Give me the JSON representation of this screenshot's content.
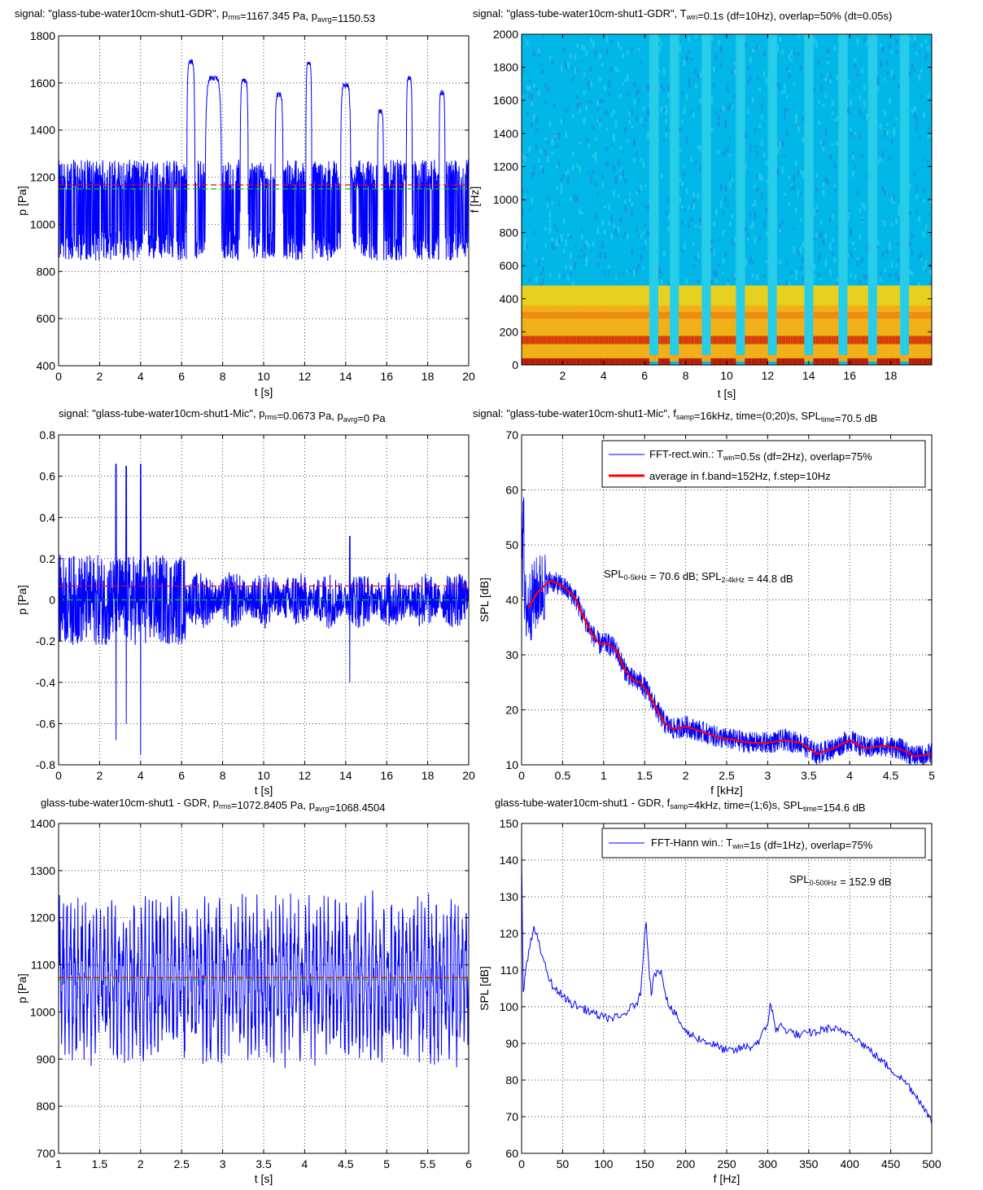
{
  "colors": {
    "signal": "#0000ff",
    "rms_line": "#ff0000",
    "avg_line": "#00cc00",
    "grid": "#000000",
    "spectrogram_bg": "#00b7e8"
  },
  "chart_data": [
    {
      "id": "p1",
      "type": "line",
      "title": {
        "pre": "signal: \"glass-tube-water10cm-shut1-GDR\",  p",
        "sub1": "rms",
        "mid": "=1167.345 Pa,  p",
        "sub2": "avrg",
        "post": "=1150.53"
      },
      "xlabel": "t [s]",
      "ylabel": "p [Pa]",
      "xlim": [
        0,
        20
      ],
      "ylim": [
        400,
        1800
      ],
      "xticks": [
        0,
        2,
        4,
        6,
        8,
        10,
        12,
        14,
        16,
        18,
        20
      ],
      "yticks": [
        400,
        600,
        800,
        1000,
        1200,
        1400,
        1600,
        1800
      ],
      "grid": true,
      "envelope": {
        "baseline_low": 820,
        "baseline_high": 1250,
        "baseline_mid": 1060,
        "pulses": [
          [
            6.3,
            6.6,
            1700
          ],
          [
            7.2,
            7.9,
            1630
          ],
          [
            8.9,
            9.2,
            1620
          ],
          [
            10.6,
            10.9,
            1560
          ],
          [
            12.1,
            12.3,
            1690
          ],
          [
            13.8,
            14.2,
            1600
          ],
          [
            15.6,
            15.8,
            1490
          ],
          [
            17.0,
            17.2,
            1630
          ],
          [
            18.6,
            18.8,
            1570
          ]
        ]
      },
      "hlines": [
        {
          "role": "rms",
          "value": 1167.3
        },
        {
          "role": "avrg",
          "value": 1150.5
        }
      ]
    },
    {
      "id": "p2",
      "type": "heatmap",
      "title": {
        "pre": "signal: \"glass-tube-water10cm-shut1-GDR\",  T",
        "sub1": "win",
        "post": "=0.1s (df=10Hz), overlap=50% (dt=0.05s)"
      },
      "xlabel": "t [s]",
      "ylabel": "f [Hz]",
      "xlim": [
        0,
        20
      ],
      "ylim": [
        0,
        2000
      ],
      "xticks": [
        2,
        4,
        6,
        8,
        10,
        12,
        14,
        16,
        18
      ],
      "yticks": [
        0,
        200,
        400,
        600,
        800,
        1000,
        1200,
        1400,
        1600,
        1800,
        2000
      ],
      "gaps_t": [
        6.4,
        7.4,
        9.0,
        10.7,
        12.2,
        14.0,
        15.7,
        17.1,
        18.7
      ]
    },
    {
      "id": "p3",
      "type": "line",
      "title": {
        "pre": "signal: \"glass-tube-water10cm-shut1-Mic\",  p",
        "sub1": "rms",
        "mid": "=0.0673 Pa,  p",
        "sub2": "avrg",
        "post": "=0 Pa"
      },
      "xlabel": "t [s]",
      "ylabel": "p [Pa]",
      "xlim": [
        0,
        20
      ],
      "ylim": [
        -0.8,
        0.8
      ],
      "xticks": [
        0,
        2,
        4,
        6,
        8,
        10,
        12,
        14,
        16,
        18,
        20
      ],
      "yticks": [
        -0.8,
        -0.6,
        -0.4,
        -0.2,
        0,
        0.2,
        0.4,
        0.6,
        0.8
      ],
      "grid": true,
      "spikes": [
        [
          2.8,
          0.66,
          -0.68
        ],
        [
          3.3,
          0.65,
          -0.6
        ],
        [
          4.0,
          0.66,
          -0.75
        ],
        [
          14.2,
          0.31,
          -0.4
        ]
      ],
      "hlines": [
        {
          "role": "rms",
          "value": 0.0673
        },
        {
          "role": "avrg",
          "value": 0
        }
      ]
    },
    {
      "id": "p4",
      "type": "line",
      "title": {
        "pre": "signal: \"glass-tube-water10cm-shut1-Mic\",  f",
        "sub1": "samp",
        "mid": "=16kHz,  time=(0;20)s,  SPL",
        "sub2": "time",
        "post": "=70.5 dB"
      },
      "xlabel": "f [kHz]",
      "ylabel": "SPL [dB]",
      "xlim": [
        0,
        5
      ],
      "ylim": [
        10,
        70
      ],
      "xticks": [
        0,
        0.5,
        1,
        1.5,
        2,
        2.5,
        3,
        3.5,
        4,
        4.5,
        5
      ],
      "yticks": [
        10,
        20,
        30,
        40,
        50,
        60,
        70
      ],
      "grid": true,
      "series": [
        {
          "name": "FFT-rect.win.: T",
          "name_sub": "win",
          "name_post": "=0.5s (df=2Hz), overlap=75%"
        },
        {
          "name": "average in f.band=152Hz, f.step=10Hz",
          "x": [
            0.08,
            0.2,
            0.35,
            0.5,
            0.65,
            0.75,
            0.85,
            0.95,
            1.05,
            1.15,
            1.25,
            1.35,
            1.45,
            1.55,
            1.65,
            1.75,
            1.85,
            2.0,
            2.2,
            2.4,
            2.6,
            2.8,
            3.0,
            3.2,
            3.4,
            3.6,
            3.8,
            4.0,
            4.2,
            4.4,
            4.6,
            4.8,
            5.0
          ],
          "y": [
            38.5,
            41.5,
            43.5,
            42.5,
            40.5,
            37,
            34,
            32,
            32,
            31,
            27.5,
            25.5,
            25,
            23,
            20,
            17.5,
            16.5,
            17,
            16,
            15,
            14.5,
            14,
            14,
            14.5,
            14,
            12,
            13,
            14.5,
            13,
            13.5,
            13,
            11.5,
            12
          ]
        }
      ],
      "annotation": {
        "a": "SPL",
        "a_sub": "0-5kHz",
        "b": " = 70.6 dB;    SPL",
        "b_sub": "2-4kHz",
        "c": " = 44.8 dB"
      }
    },
    {
      "id": "p5",
      "type": "line",
      "title": {
        "pre": "glass-tube-water10cm-shut1 - GDR,  p",
        "sub1": "rms",
        "mid": "=1072.8405 Pa,  p",
        "sub2": "avrg",
        "post": "=1068.4504 "
      },
      "xlabel": "t [s]",
      "ylabel": "p [Pa]",
      "xlim": [
        1,
        6
      ],
      "ylim": [
        700,
        1400
      ],
      "xticks": [
        1,
        1.5,
        2,
        2.5,
        3,
        3.5,
        4,
        4.5,
        5,
        5.5,
        6
      ],
      "yticks": [
        700,
        800,
        900,
        1000,
        1100,
        1200,
        1300,
        1400
      ],
      "grid": true,
      "hlines": [
        {
          "role": "rms",
          "value": 1072.8
        },
        {
          "role": "avrg",
          "value": 1068.5
        }
      ]
    },
    {
      "id": "p6",
      "type": "line",
      "title": {
        "pre": "glass-tube-water10cm-shut1 - GDR,  f",
        "sub1": "samp",
        "mid": "=4kHz,  time=(1;6)s,  SPL",
        "sub2": "time",
        "post": "=154.6 dB"
      },
      "xlabel": "f [Hz]",
      "ylabel": "SPL [dB]",
      "xlim": [
        0,
        500
      ],
      "ylim": [
        60,
        150
      ],
      "xticks": [
        0,
        50,
        100,
        150,
        200,
        250,
        300,
        350,
        400,
        450,
        500
      ],
      "yticks": [
        60,
        70,
        80,
        90,
        100,
        110,
        120,
        130,
        140,
        150
      ],
      "grid": true,
      "series": [
        {
          "name": "FFT-Hann win.: T",
          "name_sub": "win",
          "name_post": "=1s (df=1Hz), overlap=75%",
          "x": [
            0,
            2,
            5,
            10,
            15,
            20,
            25,
            30,
            35,
            40,
            45,
            50,
            55,
            60,
            70,
            80,
            90,
            100,
            110,
            120,
            130,
            140,
            145,
            150,
            152,
            155,
            158,
            160,
            165,
            170,
            175,
            180,
            190,
            200,
            210,
            220,
            230,
            240,
            250,
            260,
            270,
            280,
            290,
            300,
            303,
            306,
            310,
            315,
            320,
            330,
            340,
            350,
            360,
            370,
            380,
            390,
            400,
            410,
            420,
            430,
            440,
            450,
            460,
            470,
            480,
            490,
            500
          ],
          "y": [
            142,
            104,
            110,
            116,
            122,
            118,
            114,
            110,
            107,
            105,
            104,
            103,
            102,
            101,
            100,
            99,
            98,
            97,
            97,
            97,
            99,
            101,
            103,
            120,
            123,
            112,
            103,
            107,
            110,
            110,
            104,
            100,
            97,
            93,
            92,
            91,
            90,
            89,
            88,
            88,
            89,
            89,
            91,
            95,
            101,
            99,
            93,
            95,
            94,
            93,
            92,
            93,
            93,
            94,
            94,
            93,
            93,
            91,
            89,
            87,
            85,
            83,
            81,
            79,
            76,
            73,
            68
          ]
        }
      ],
      "annotation": {
        "a": "SPL",
        "a_sub": "0-500Hz",
        "c": " = 152.9 dB"
      }
    }
  ]
}
